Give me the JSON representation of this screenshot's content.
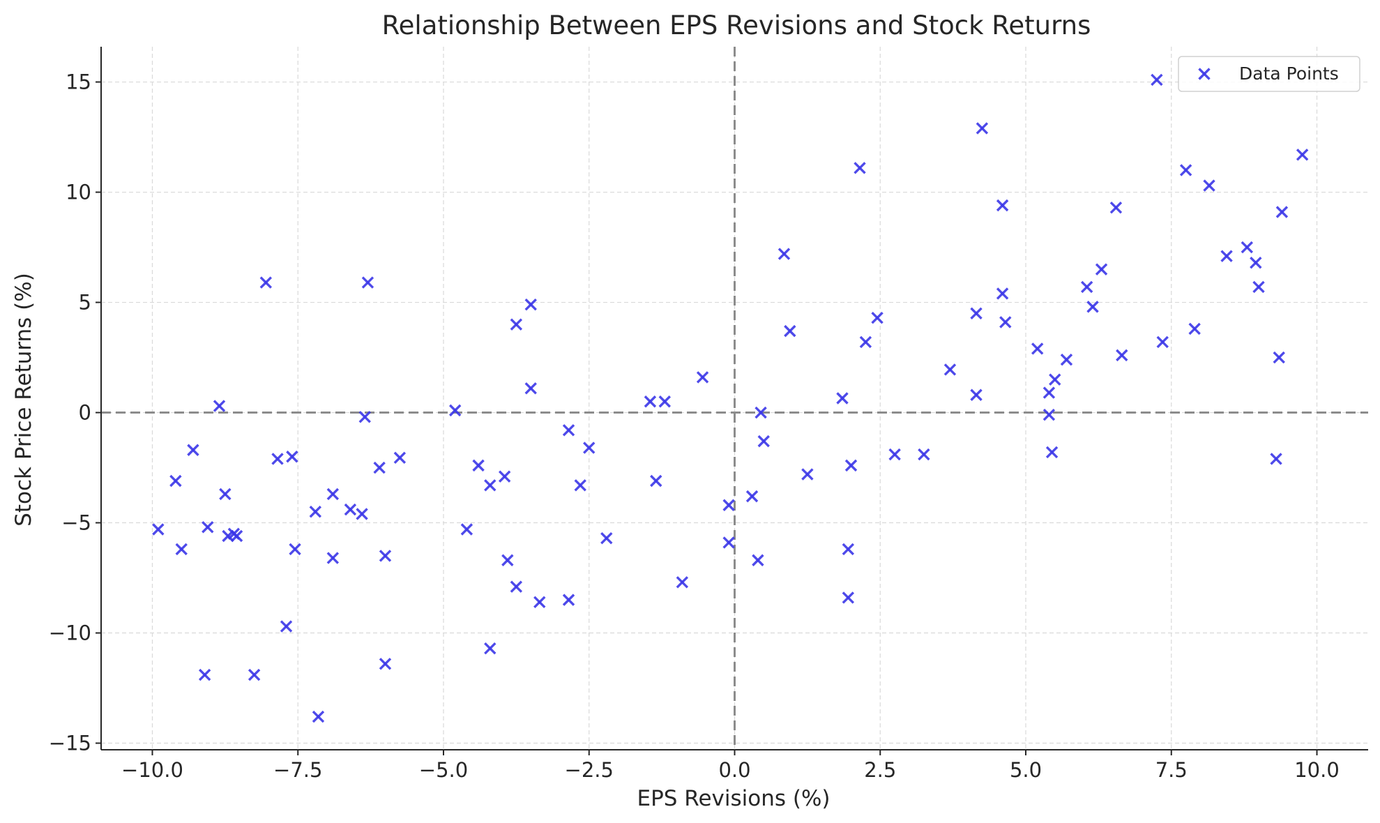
{
  "chart_data": {
    "type": "scatter",
    "title": "Relationship Between EPS Revisions and Stock Returns",
    "xlabel": "EPS Revisions (%)",
    "ylabel": "Stock Price Returns (%)",
    "xlim": [
      -10.88,
      10.88
    ],
    "ylim": [
      -15.3,
      16.6
    ],
    "xticks": [
      -10.0,
      -7.5,
      -5.0,
      -2.5,
      0.0,
      2.5,
      5.0,
      7.5,
      10.0
    ],
    "xtick_labels": [
      "−10.0",
      "−7.5",
      "−5.0",
      "−2.5",
      "0.0",
      "2.5",
      "5.0",
      "7.5",
      "10.0"
    ],
    "yticks": [
      -15,
      -10,
      -5,
      0,
      5,
      10,
      15
    ],
    "ytick_labels": [
      "−15",
      "−10",
      "−5",
      "0",
      "5",
      "10",
      "15"
    ],
    "grid": true,
    "reference_lines": {
      "x": 0,
      "y": 0,
      "style": "dashed",
      "color": "#8c8c8c"
    },
    "legend": {
      "position": "top-right",
      "entries": [
        "Data Points"
      ]
    },
    "series": [
      {
        "name": "Data Points",
        "marker": "x",
        "color": "#3b36e8",
        "points": [
          [
            -9.9,
            -5.3
          ],
          [
            -9.6,
            -3.1
          ],
          [
            -9.5,
            -6.2
          ],
          [
            -9.3,
            -1.7
          ],
          [
            -9.05,
            -5.2
          ],
          [
            -9.1,
            -11.9
          ],
          [
            -8.85,
            0.3
          ],
          [
            -8.75,
            -3.7
          ],
          [
            -8.7,
            -5.6
          ],
          [
            -8.6,
            -5.5
          ],
          [
            -8.55,
            -5.6
          ],
          [
            -8.25,
            -11.9
          ],
          [
            -8.05,
            5.9
          ],
          [
            -7.85,
            -2.1
          ],
          [
            -7.7,
            -9.7
          ],
          [
            -7.6,
            -2.0
          ],
          [
            -7.55,
            -6.2
          ],
          [
            -7.2,
            -4.5
          ],
          [
            -7.15,
            -13.8
          ],
          [
            -6.9,
            -3.7
          ],
          [
            -6.9,
            -6.6
          ],
          [
            -6.6,
            -4.4
          ],
          [
            -6.4,
            -4.6
          ],
          [
            -6.35,
            -0.2
          ],
          [
            -6.3,
            5.9
          ],
          [
            -6.1,
            -2.5
          ],
          [
            -6.0,
            -6.5
          ],
          [
            -6.0,
            -11.4
          ],
          [
            -5.75,
            -2.05
          ],
          [
            -4.8,
            0.1
          ],
          [
            -4.6,
            -5.3
          ],
          [
            -4.4,
            -2.4
          ],
          [
            -4.2,
            -3.3
          ],
          [
            -4.2,
            -10.7
          ],
          [
            -3.95,
            -2.9
          ],
          [
            -3.9,
            -6.7
          ],
          [
            -3.75,
            4.0
          ],
          [
            -3.75,
            -7.9
          ],
          [
            -3.5,
            4.9
          ],
          [
            -3.5,
            1.1
          ],
          [
            -3.35,
            -8.6
          ],
          [
            -2.85,
            -0.8
          ],
          [
            -2.85,
            -8.5
          ],
          [
            -2.65,
            -3.3
          ],
          [
            -2.5,
            -1.6
          ],
          [
            -2.2,
            -5.7
          ],
          [
            -1.45,
            0.5
          ],
          [
            -1.35,
            -3.1
          ],
          [
            -1.2,
            0.5
          ],
          [
            -0.9,
            -7.7
          ],
          [
            -0.55,
            1.6
          ],
          [
            -0.1,
            -4.2
          ],
          [
            -0.1,
            -5.9
          ],
          [
            0.3,
            -3.8
          ],
          [
            0.4,
            -6.7
          ],
          [
            0.45,
            0.0
          ],
          [
            0.5,
            -1.3
          ],
          [
            0.85,
            7.2
          ],
          [
            0.95,
            3.7
          ],
          [
            1.25,
            -2.8
          ],
          [
            1.85,
            0.65
          ],
          [
            1.95,
            -6.2
          ],
          [
            1.95,
            -8.4
          ],
          [
            2.0,
            -2.4
          ],
          [
            2.15,
            11.1
          ],
          [
            2.25,
            3.2
          ],
          [
            2.45,
            4.3
          ],
          [
            2.75,
            -1.9
          ],
          [
            3.25,
            -1.9
          ],
          [
            3.7,
            1.95
          ],
          [
            4.15,
            4.5
          ],
          [
            4.15,
            0.8
          ],
          [
            4.25,
            12.9
          ],
          [
            4.6,
            5.4
          ],
          [
            4.6,
            9.4
          ],
          [
            4.65,
            4.1
          ],
          [
            5.2,
            2.9
          ],
          [
            5.4,
            0.9
          ],
          [
            5.4,
            -0.1
          ],
          [
            5.45,
            -1.8
          ],
          [
            5.5,
            1.5
          ],
          [
            5.7,
            2.4
          ],
          [
            6.05,
            5.7
          ],
          [
            6.15,
            4.8
          ],
          [
            6.3,
            6.5
          ],
          [
            6.55,
            9.3
          ],
          [
            6.65,
            2.6
          ],
          [
            7.25,
            15.1
          ],
          [
            7.35,
            3.2
          ],
          [
            7.75,
            11.0
          ],
          [
            7.9,
            3.8
          ],
          [
            8.15,
            10.3
          ],
          [
            8.45,
            7.1
          ],
          [
            8.8,
            7.5
          ],
          [
            8.95,
            6.8
          ],
          [
            9.0,
            5.7
          ],
          [
            9.3,
            -2.1
          ],
          [
            9.35,
            2.5
          ],
          [
            9.4,
            9.1
          ],
          [
            9.75,
            11.7
          ]
        ]
      }
    ]
  }
}
